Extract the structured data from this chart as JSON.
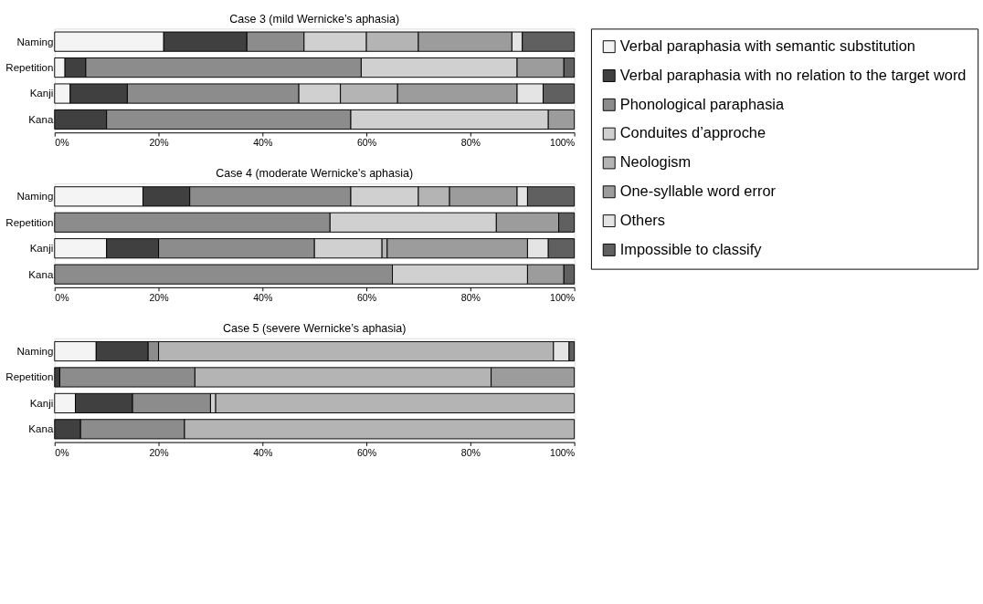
{
  "chart_data": [
    {
      "type": "bar",
      "title": "Case 3 (mild Wernicke’s aphasia)",
      "orientation": "horizontal",
      "stacked": true,
      "legend": "right",
      "grid": false,
      "categories": [
        "Naming",
        "Repetition",
        "Kanji",
        "Kana"
      ],
      "xlim": [
        0,
        100
      ],
      "xticks": [
        {
          "value": 0,
          "label": "0%"
        },
        {
          "value": 20,
          "label": "20%"
        },
        {
          "value": 40,
          "label": "40%"
        },
        {
          "value": 60,
          "label": "60%"
        },
        {
          "value": 80,
          "label": "80%"
        },
        {
          "value": 100,
          "label": "100%"
        }
      ],
      "series": [
        {
          "name": "Verbal paraphasia with semantic substitution",
          "color": "#f4f4f4",
          "values": [
            21,
            2,
            3,
            0
          ]
        },
        {
          "name": "Verbal paraphasia with no relation to the target word",
          "color": "#404040",
          "values": [
            16,
            4,
            11,
            10
          ]
        },
        {
          "name": "Phonological paraphasia",
          "color": "#8c8c8c",
          "values": [
            11,
            53,
            33,
            47
          ]
        },
        {
          "name": "Conduites d’approche",
          "color": "#d0d0d0",
          "values": [
            12,
            30,
            8,
            38
          ]
        },
        {
          "name": "Neologism",
          "color": "#b4b4b4",
          "values": [
            10,
            0,
            11,
            0
          ]
        },
        {
          "name": "One-syllable word error",
          "color": "#9c9c9c",
          "values": [
            18,
            9,
            23,
            5
          ]
        },
        {
          "name": "Others",
          "color": "#e4e4e4",
          "values": [
            2,
            0,
            5,
            0
          ]
        },
        {
          "name": "Impossible to classify",
          "color": "#606060",
          "values": [
            10,
            2,
            6,
            0
          ]
        }
      ]
    },
    {
      "type": "bar",
      "title": "Case 4 (moderate Wernicke’s aphasia)",
      "orientation": "horizontal",
      "stacked": true,
      "legend": "right",
      "grid": false,
      "categories": [
        "Naming",
        "Repetition",
        "Kanji",
        "Kana"
      ],
      "xlim": [
        0,
        100
      ],
      "xticks": [
        {
          "value": 0,
          "label": "0%"
        },
        {
          "value": 20,
          "label": "20%"
        },
        {
          "value": 40,
          "label": "40%"
        },
        {
          "value": 60,
          "label": "60%"
        },
        {
          "value": 80,
          "label": "80%"
        },
        {
          "value": 100,
          "label": "100%"
        }
      ],
      "series": [
        {
          "name": "Verbal paraphasia with semantic substitution",
          "color": "#f4f4f4",
          "values": [
            17,
            0,
            10,
            0
          ]
        },
        {
          "name": "Verbal paraphasia with no relation to the target word",
          "color": "#404040",
          "values": [
            9,
            0,
            10,
            0
          ]
        },
        {
          "name": "Phonological paraphasia",
          "color": "#8c8c8c",
          "values": [
            31,
            53,
            30,
            65
          ]
        },
        {
          "name": "Conduites d’approche",
          "color": "#d0d0d0",
          "values": [
            13,
            32,
            13,
            26
          ]
        },
        {
          "name": "Neologism",
          "color": "#b4b4b4",
          "values": [
            6,
            0,
            1,
            0
          ]
        },
        {
          "name": "One-syllable word error",
          "color": "#9c9c9c",
          "values": [
            13,
            12,
            27,
            7
          ]
        },
        {
          "name": "Others",
          "color": "#e4e4e4",
          "values": [
            2,
            0,
            4,
            0
          ]
        },
        {
          "name": "Impossible to classify",
          "color": "#606060",
          "values": [
            9,
            3,
            5,
            2
          ]
        }
      ]
    },
    {
      "type": "bar",
      "title": "Case 5 (severe Wernicke’s aphasia)",
      "orientation": "horizontal",
      "stacked": true,
      "legend": "right",
      "grid": false,
      "categories": [
        "Naming",
        "Repetition",
        "Kanji",
        "Kana"
      ],
      "xlim": [
        0,
        100
      ],
      "xticks": [
        {
          "value": 0,
          "label": "0%"
        },
        {
          "value": 20,
          "label": "20%"
        },
        {
          "value": 40,
          "label": "40%"
        },
        {
          "value": 60,
          "label": "60%"
        },
        {
          "value": 80,
          "label": "80%"
        },
        {
          "value": 100,
          "label": "100%"
        }
      ],
      "series": [
        {
          "name": "Verbal paraphasia with semantic substitution",
          "color": "#f4f4f4",
          "values": [
            8,
            0,
            4,
            0
          ]
        },
        {
          "name": "Verbal paraphasia with no relation to the target word",
          "color": "#404040",
          "values": [
            10,
            1,
            11,
            5
          ]
        },
        {
          "name": "Phonological paraphasia",
          "color": "#8c8c8c",
          "values": [
            2,
            26,
            15,
            20
          ]
        },
        {
          "name": "Conduites d’approche",
          "color": "#d0d0d0",
          "values": [
            0,
            0,
            1,
            0
          ]
        },
        {
          "name": "Neologism",
          "color": "#b4b4b4",
          "values": [
            76,
            57,
            69,
            75
          ]
        },
        {
          "name": "One-syllable word error",
          "color": "#9c9c9c",
          "values": [
            0,
            16,
            0,
            0
          ]
        },
        {
          "name": "Others",
          "color": "#e4e4e4",
          "values": [
            3,
            0,
            0,
            0
          ]
        },
        {
          "name": "Impossible to classify",
          "color": "#606060",
          "values": [
            1,
            0,
            0,
            0
          ]
        }
      ]
    }
  ]
}
